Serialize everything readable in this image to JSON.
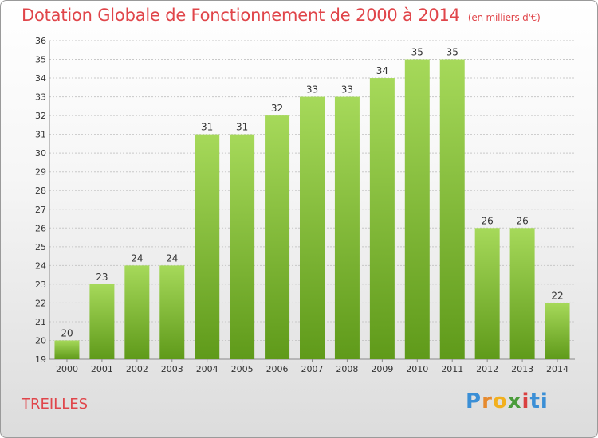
{
  "title": "Dotation Globale de Fonctionnement de 2000 à 2014",
  "subtitle": "(en milliers d'€)",
  "entity": "TREILLES",
  "logo": {
    "p": "P",
    "r": "r",
    "o": "o",
    "x": "x",
    "i": "i",
    "t": "ti"
  },
  "colors": {
    "bar_light": "#a6d95a",
    "bar_dark": "#5f9a1a",
    "title": "#e0454a"
  },
  "chart_data": {
    "type": "bar",
    "title": "Dotation Globale de Fonctionnement de 2000 à 2014",
    "subtitle": "(en milliers d'€)",
    "xlabel": "",
    "ylabel": "",
    "ylim": [
      19,
      36
    ],
    "yticks": [
      19,
      20,
      21,
      22,
      23,
      24,
      25,
      26,
      27,
      28,
      29,
      30,
      31,
      32,
      33,
      34,
      35,
      36
    ],
    "categories": [
      "2000",
      "2001",
      "2002",
      "2003",
      "2004",
      "2005",
      "2006",
      "2007",
      "2008",
      "2009",
      "2010",
      "2011",
      "2012",
      "2013",
      "2014"
    ],
    "values": [
      20,
      23,
      24,
      24,
      31,
      31,
      32,
      33,
      33,
      34,
      35,
      35,
      26,
      26,
      22
    ],
    "grid": true
  }
}
